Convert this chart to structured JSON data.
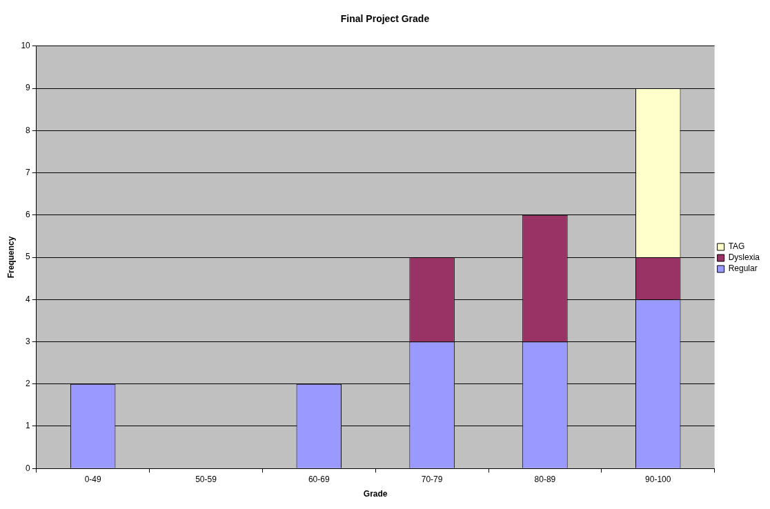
{
  "chart_data": {
    "type": "bar",
    "title": "Final Project Grade",
    "xlabel": "Grade",
    "ylabel": "Frequency",
    "categories": [
      "0-49",
      "50-59",
      "60-69",
      "70-79",
      "80-89",
      "90-100"
    ],
    "stacked": true,
    "series": [
      {
        "name": "Regular",
        "color": "#9999ff",
        "values": [
          2,
          0,
          2,
          3,
          3,
          4
        ]
      },
      {
        "name": "Dyslexia",
        "color": "#993366",
        "values": [
          0,
          0,
          0,
          2,
          3,
          1
        ]
      },
      {
        "name": "TAG",
        "color": "#ffffcc",
        "values": [
          0,
          0,
          0,
          0,
          0,
          4
        ]
      }
    ],
    "ylim": [
      0,
      10
    ],
    "yticks": [
      0,
      1,
      2,
      3,
      4,
      5,
      6,
      7,
      8,
      9,
      10
    ],
    "grid": "y",
    "legend": "right"
  }
}
